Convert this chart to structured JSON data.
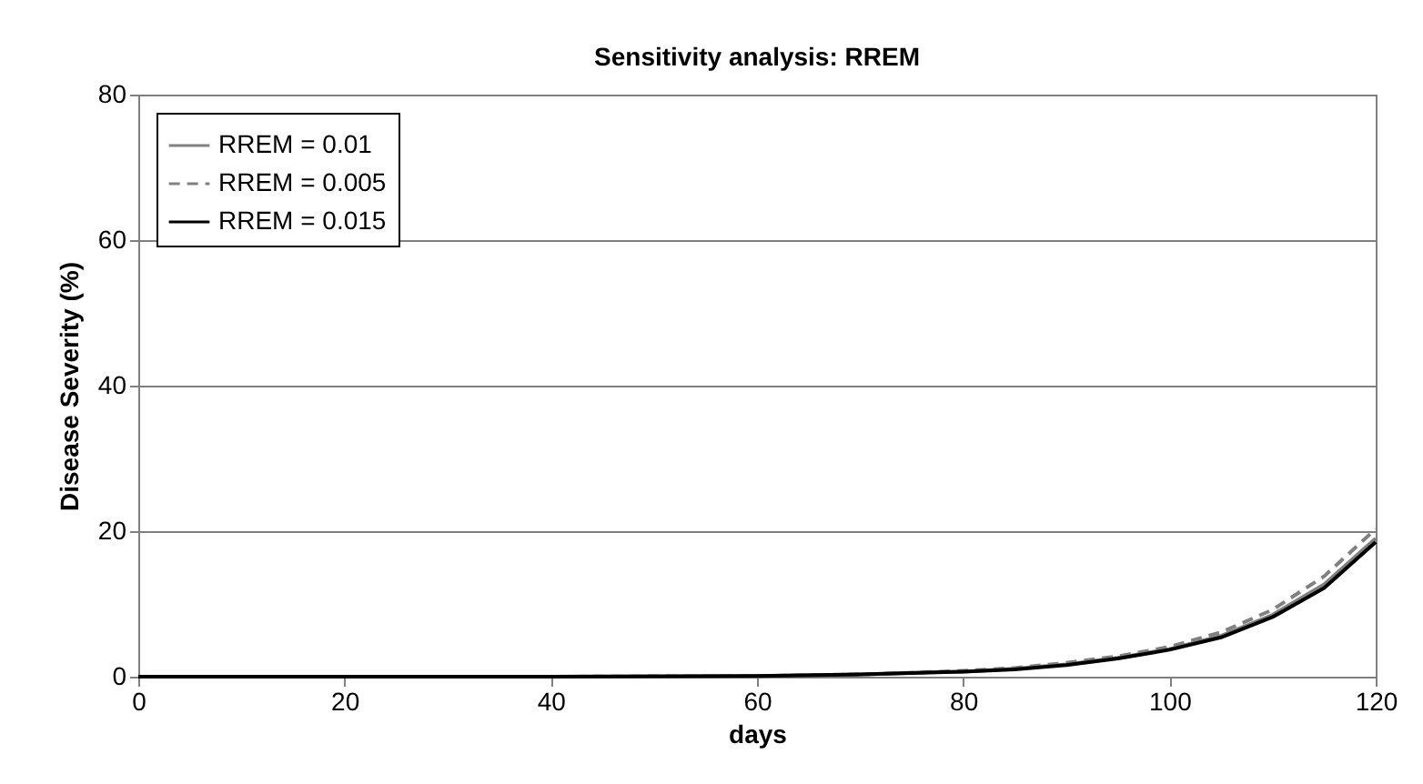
{
  "chart_data": {
    "type": "line",
    "title": "Sensitivity analysis: RREM",
    "xlabel": "days",
    "ylabel": "Disease Severity (%)",
    "x": [
      0,
      20,
      40,
      60,
      70,
      80,
      85,
      90,
      95,
      100,
      105,
      110,
      115,
      120
    ],
    "series": [
      {
        "name": "RREM = 0.01",
        "color": "#808080",
        "line_style": "solid",
        "values": [
          0,
          0,
          0,
          0.1,
          0.3,
          0.7,
          1.1,
          1.7,
          2.6,
          3.8,
          5.6,
          8.5,
          12.7,
          19
        ]
      },
      {
        "name": "RREM = 0.005",
        "color": "#808080",
        "line_style": "dashed",
        "values": [
          0,
          0,
          0,
          0.1,
          0.3,
          0.8,
          1.2,
          1.9,
          2.8,
          4.1,
          6.1,
          9.2,
          13.8,
          20.3
        ]
      },
      {
        "name": "RREM = 0.015",
        "color": "#000000",
        "line_style": "solid",
        "values": [
          0,
          0,
          0,
          0.1,
          0.3,
          0.7,
          1.0,
          1.6,
          2.5,
          3.7,
          5.4,
          8.2,
          12.2,
          18.5
        ]
      }
    ],
    "xlim": [
      0,
      120
    ],
    "xticks": [
      0,
      20,
      40,
      60,
      80,
      100,
      120
    ],
    "ylim": [
      0,
      80
    ],
    "yticks": [
      0,
      20,
      40,
      60,
      80
    ],
    "grid": "y",
    "legend": "top left",
    "marker": "none"
  }
}
